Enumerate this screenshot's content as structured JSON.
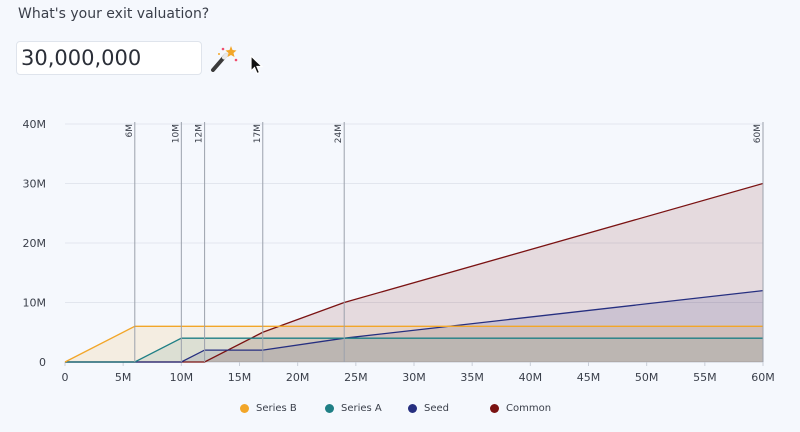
{
  "prompt": {
    "question": "What's your exit valuation?"
  },
  "valuation_input": {
    "value": "30,000,000"
  },
  "chart_data": {
    "type": "area",
    "x_ticks": [
      0,
      5,
      10,
      15,
      20,
      25,
      30,
      35,
      40,
      45,
      50,
      55,
      60
    ],
    "x_tick_labels": [
      "0",
      "5M",
      "10M",
      "15M",
      "20M",
      "25M",
      "30M",
      "35M",
      "40M",
      "45M",
      "50M",
      "55M",
      "60M"
    ],
    "y_ticks": [
      0,
      10,
      20,
      30,
      40
    ],
    "y_tick_labels": [
      "0",
      "10M",
      "20M",
      "30M",
      "40M"
    ],
    "xlim": [
      0,
      60
    ],
    "ylim": [
      0,
      40
    ],
    "grid": true,
    "legend_position": "bottom",
    "breakpoints": [
      {
        "x": 6,
        "label": "6M"
      },
      {
        "x": 10,
        "label": "10M"
      },
      {
        "x": 12,
        "label": "12M"
      },
      {
        "x": 17,
        "label": "17M"
      },
      {
        "x": 24,
        "label": "24M"
      },
      {
        "x": 60,
        "label": "60M"
      }
    ],
    "series": [
      {
        "name": "Series B",
        "color": "#f2a629",
        "points": [
          [
            0,
            0
          ],
          [
            6,
            6
          ],
          [
            60,
            6
          ]
        ]
      },
      {
        "name": "Series A",
        "color": "#1f7f85",
        "points": [
          [
            0,
            0
          ],
          [
            6,
            0
          ],
          [
            10,
            4
          ],
          [
            60,
            4
          ]
        ]
      },
      {
        "name": "Seed",
        "color": "#262f80",
        "points": [
          [
            0,
            0
          ],
          [
            10,
            0
          ],
          [
            12,
            2
          ],
          [
            17,
            2
          ],
          [
            24,
            4
          ],
          [
            60,
            12
          ]
        ]
      },
      {
        "name": "Common",
        "color": "#7a1212",
        "points": [
          [
            0,
            0
          ],
          [
            12,
            0
          ],
          [
            17,
            5
          ],
          [
            24,
            10
          ],
          [
            60,
            30
          ]
        ]
      }
    ]
  }
}
